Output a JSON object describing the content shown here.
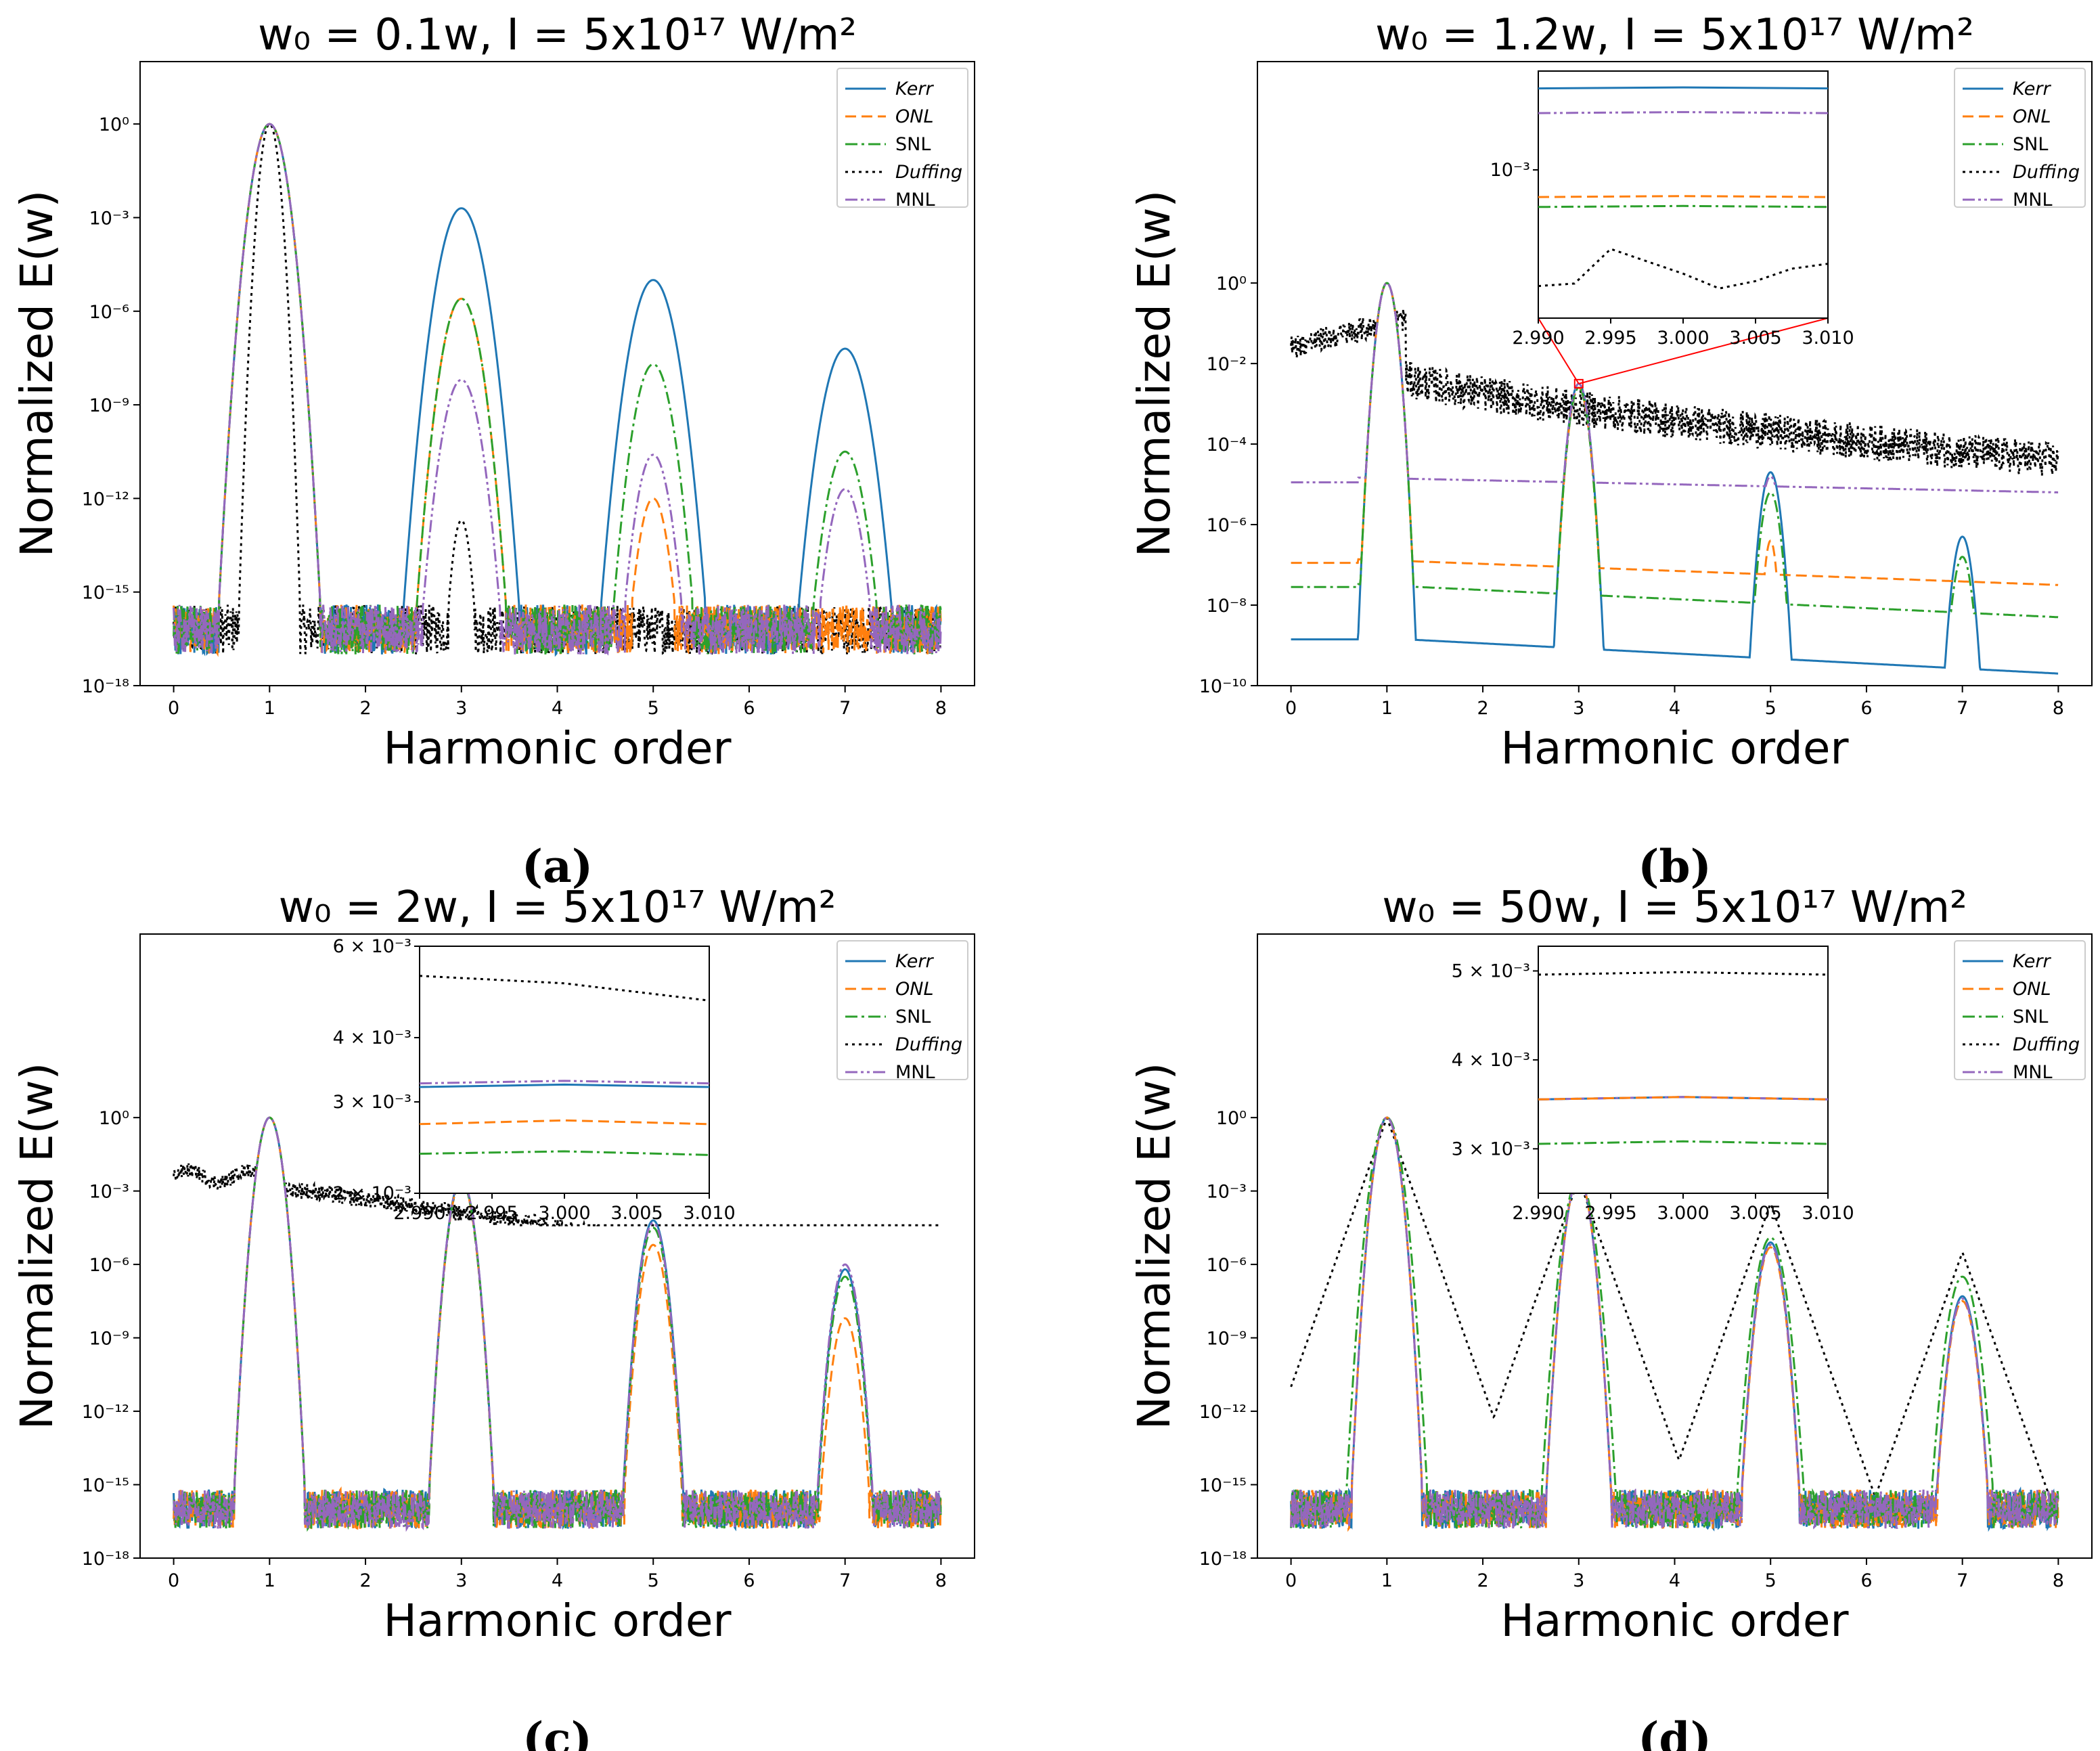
{
  "figure": {
    "xlabel": "Harmonic order",
    "ylabel": "Normalized E(w)",
    "legend": [
      {
        "name": "Kerr",
        "italic": true,
        "color": "#1f77b4",
        "dash": "solid"
      },
      {
        "name": "ONL",
        "italic": true,
        "color": "#ff7f0e",
        "dash": "dashed"
      },
      {
        "name": "SNL",
        "italic": false,
        "color": "#2ca02c",
        "dash": "dashdot"
      },
      {
        "name": "Duffing",
        "italic": true,
        "color": "#000000",
        "dash": "dotted"
      },
      {
        "name": "MNL",
        "italic": false,
        "color": "#9467bd",
        "dash": "dashdotdot"
      }
    ],
    "colors": {
      "inset_connector": "#ff0000",
      "axes": "#000000",
      "background": "#ffffff"
    }
  },
  "chart_data": [
    {
      "panel_label": "(a)",
      "title": "w₀ = 0.1w, I = 5x10¹⁷ W/m²",
      "type": "line",
      "xlabel": "Harmonic order",
      "ylabel": "Normalized E(w)",
      "xscale": "linear",
      "yscale": "log",
      "xlim": [
        -0.35,
        8.35
      ],
      "ylim_exp": [
        -18,
        2
      ],
      "xticks": [
        0,
        1,
        2,
        3,
        4,
        5,
        6,
        7,
        8
      ],
      "yticks": [
        {
          "v": 0,
          "label": "10⁰"
        },
        {
          "v": -3,
          "label": "10⁻³"
        },
        {
          "v": -6,
          "label": "10⁻⁶"
        },
        {
          "v": -9,
          "label": "10⁻⁹"
        },
        {
          "v": -12,
          "label": "10⁻¹²"
        },
        {
          "v": -15,
          "label": "10⁻¹⁵"
        },
        {
          "v": -18,
          "label": "10⁻¹⁸"
        }
      ],
      "legend_position": "top-right",
      "noise_floor_log10": -16.2,
      "series": [
        {
          "name": "Kerr",
          "peaks": [
            {
              "h": 1,
              "log10": 0,
              "w": 0.2
            },
            {
              "h": 3,
              "log10": -2.7,
              "w": 0.25
            },
            {
              "h": 5,
              "log10": -5,
              "w": 0.25
            },
            {
              "h": 7,
              "log10": -7.2,
              "w": 0.25
            }
          ]
        },
        {
          "name": "ONL",
          "peaks": [
            {
              "h": 1,
              "log10": 0,
              "w": 0.2
            },
            {
              "h": 3,
              "log10": -5.6,
              "w": 0.22
            },
            {
              "h": 5,
              "log10": -12,
              "w": 0.18
            }
          ]
        },
        {
          "name": "SNL",
          "peaks": [
            {
              "h": 1,
              "log10": 0,
              "w": 0.2
            },
            {
              "h": 3,
              "log10": -5.6,
              "w": 0.22
            },
            {
              "h": 5,
              "log10": -7.7,
              "w": 0.22
            },
            {
              "h": 7,
              "log10": -10.5,
              "w": 0.22
            }
          ]
        },
        {
          "name": "Duffing",
          "peaks": [
            {
              "h": 1,
              "log10": 0,
              "w": 0.12
            },
            {
              "h": 3,
              "log10": -12.7,
              "w": 0.12
            }
          ]
        },
        {
          "name": "MNL",
          "peaks": [
            {
              "h": 1,
              "log10": 0,
              "w": 0.2
            },
            {
              "h": 3,
              "log10": -8.2,
              "w": 0.22
            },
            {
              "h": 5,
              "log10": -10.6,
              "w": 0.2
            },
            {
              "h": 7,
              "log10": -11.7,
              "w": 0.2
            }
          ]
        }
      ]
    },
    {
      "panel_label": "(b)",
      "title": "w₀ = 1.2w, I = 5x10¹⁷ W/m²",
      "type": "line",
      "xlabel": "Harmonic order",
      "ylabel": "Normalized E(w)",
      "xscale": "linear",
      "yscale": "log",
      "xlim": [
        -0.35,
        8.35
      ],
      "ylim_exp": [
        -10,
        5.5
      ],
      "xticks": [
        0,
        1,
        2,
        3,
        4,
        5,
        6,
        7,
        8
      ],
      "yticks": [
        {
          "v": 0,
          "label": "10⁰"
        },
        {
          "v": -2,
          "label": "10⁻²"
        },
        {
          "v": -4,
          "label": "10⁻⁴"
        },
        {
          "v": -6,
          "label": "10⁻⁶"
        },
        {
          "v": -8,
          "label": "10⁻⁸"
        },
        {
          "v": -10,
          "label": "10⁻¹⁰"
        }
      ],
      "legend_position": "top-right",
      "baselines": {
        "Kerr": [
          -8.7,
          -9.7
        ],
        "ONL": [
          -6.8,
          -7.5
        ],
        "SNL": [
          -7.4,
          -8.3
        ],
        "MNL": [
          -4.8,
          -5.2
        ],
        "Duffing": [
          -1.3,
          -4.4
        ]
      },
      "series": [
        {
          "name": "Kerr",
          "peaks": [
            {
              "h": 1,
              "log10": 0,
              "w": 0.15
            },
            {
              "h": 3,
              "log10": -2.5,
              "w": 0.15
            },
            {
              "h": 5,
              "log10": -4.7,
              "w": 0.15
            },
            {
              "h": 7,
              "log10": -6.3,
              "w": 0.15
            }
          ]
        },
        {
          "name": "ONL",
          "peaks": [
            {
              "h": 1,
              "log10": 0,
              "w": 0.15
            },
            {
              "h": 3,
              "log10": -2.6,
              "w": 0.15
            },
            {
              "h": 5,
              "log10": -6.4,
              "w": 0.1
            }
          ]
        },
        {
          "name": "SNL",
          "peaks": [
            {
              "h": 1,
              "log10": 0,
              "w": 0.15
            },
            {
              "h": 3,
              "log10": -2.6,
              "w": 0.15
            },
            {
              "h": 5,
              "log10": -5.2,
              "w": 0.15
            },
            {
              "h": 7,
              "log10": -6.8,
              "w": 0.15
            }
          ]
        },
        {
          "name": "Duffing",
          "peaks": []
        },
        {
          "name": "MNL",
          "peaks": [
            {
              "h": 1,
              "log10": 0,
              "w": 0.15
            },
            {
              "h": 3,
              "log10": -2.5,
              "w": 0.15
            },
            {
              "h": 5,
              "log10": -4.8,
              "w": 0.15
            },
            {
              "h": 7,
              "log10": -6.2,
              "w": 0.12
            }
          ]
        }
      ],
      "inset": {
        "xlim": [
          2.99,
          3.01
        ],
        "xticks": [
          "2.990",
          "2.995",
          "3.000",
          "3.005",
          "3.010"
        ],
        "ytick_label": "10⁻³",
        "curves": {
          "Kerr": 0.07,
          "MNL": 0.17,
          "ONL": 0.51,
          "SNL": 0.55,
          "Duffing": [
            0.87,
            0.86,
            0.72,
            0.77,
            0.82,
            0.88,
            0.85,
            0.8,
            0.78
          ]
        }
      }
    },
    {
      "panel_label": "(c)",
      "title": "w₀ = 2w, I = 5x10¹⁷ W/m²",
      "type": "line",
      "xlabel": "Harmonic order",
      "ylabel": "Normalized E(w)",
      "xscale": "linear",
      "yscale": "log",
      "xlim": [
        -0.35,
        8.35
      ],
      "ylim_exp": [
        -18,
        7.5
      ],
      "xticks": [
        0,
        1,
        2,
        3,
        4,
        5,
        6,
        7,
        8
      ],
      "yticks": [
        {
          "v": 0,
          "label": "10⁰"
        },
        {
          "v": -3,
          "label": "10⁻³"
        },
        {
          "v": -6,
          "label": "10⁻⁶"
        },
        {
          "v": -9,
          "label": "10⁻⁹"
        },
        {
          "v": -12,
          "label": "10⁻¹²"
        },
        {
          "v": -15,
          "label": "10⁻¹⁵"
        },
        {
          "v": -18,
          "label": "10⁻¹⁸"
        }
      ],
      "legend_position": "top-right",
      "noise_floor_log10": -16.0,
      "series": [
        {
          "name": "Kerr",
          "peaks": [
            {
              "h": 1,
              "log10": 0,
              "w": 0.14
            },
            {
              "h": 3,
              "log10": -2.5,
              "w": 0.14
            },
            {
              "h": 5,
              "log10": -4.2,
              "w": 0.14
            },
            {
              "h": 7,
              "log10": -6.2,
              "w": 0.14
            }
          ]
        },
        {
          "name": "ONL",
          "peaks": [
            {
              "h": 1,
              "log10": 0,
              "w": 0.14
            },
            {
              "h": 3,
              "log10": -2.6,
              "w": 0.14
            },
            {
              "h": 5,
              "log10": -5.2,
              "w": 0.14
            },
            {
              "h": 7,
              "log10": -8.2,
              "w": 0.14
            }
          ]
        },
        {
          "name": "SNL",
          "peaks": [
            {
              "h": 1,
              "log10": 0,
              "w": 0.14
            },
            {
              "h": 3,
              "log10": -2.6,
              "w": 0.14
            },
            {
              "h": 5,
              "log10": -4.5,
              "w": 0.14
            },
            {
              "h": 7,
              "log10": -6.5,
              "w": 0.14
            }
          ]
        },
        {
          "name": "Duffing",
          "peaks": []
        },
        {
          "name": "MNL",
          "peaks": [
            {
              "h": 1,
              "log10": 0,
              "w": 0.14
            },
            {
              "h": 3,
              "log10": -2.5,
              "w": 0.14
            },
            {
              "h": 5,
              "log10": -4.3,
              "w": 0.14
            },
            {
              "h": 7,
              "log10": -6.0,
              "w": 0.14
            }
          ]
        }
      ],
      "inset": {
        "xlim": [
          2.99,
          3.01
        ],
        "xticks": [
          "2.990",
          "2.995",
          "3.000",
          "3.005",
          "3.010"
        ],
        "yticks": [
          {
            "label": "6 × 10⁻³",
            "f": 0.0
          },
          {
            "label": "4 × 10⁻³",
            "f": 0.37
          },
          {
            "label": "3 × 10⁻³",
            "f": 0.63
          },
          {
            "label": "2 × 10⁻³",
            "f": 1.0
          }
        ],
        "curves": {
          "Duffing": [
            0.12,
            0.15,
            0.22
          ],
          "MNL": [
            0.555,
            0.545,
            0.555
          ],
          "Kerr": [
            0.57,
            0.56,
            0.57
          ],
          "ONL": [
            0.72,
            0.705,
            0.72
          ],
          "SNL": [
            0.84,
            0.83,
            0.845
          ]
        }
      }
    },
    {
      "panel_label": "(d)",
      "title": "w₀ = 50w, I = 5x10¹⁷ W/m²",
      "type": "line",
      "xlabel": "Harmonic order",
      "ylabel": "Normalized E(w)",
      "xscale": "linear",
      "yscale": "log",
      "xlim": [
        -0.35,
        8.35
      ],
      "ylim_exp": [
        -18,
        7.5
      ],
      "xticks": [
        0,
        1,
        2,
        3,
        4,
        5,
        6,
        7,
        8
      ],
      "yticks": [
        {
          "v": 0,
          "label": "10⁰"
        },
        {
          "v": -3,
          "label": "10⁻³"
        },
        {
          "v": -6,
          "label": "10⁻⁶"
        },
        {
          "v": -9,
          "label": "10⁻⁹"
        },
        {
          "v": -12,
          "label": "10⁻¹²"
        },
        {
          "v": -15,
          "label": "10⁻¹⁵"
        },
        {
          "v": -18,
          "label": "10⁻¹⁸"
        }
      ],
      "legend_position": "top-right",
      "noise_floor_log10": -16.0,
      "duffing_envelope": {
        "peaks": [
          0,
          -2.5,
          -3.5,
          -5.5
        ],
        "valleys": [
          -13,
          -12.8,
          -12.8
        ],
        "ends": [
          -15.5,
          -12.5
        ]
      },
      "series": [
        {
          "name": "Kerr",
          "peaks": [
            {
              "h": 1,
              "log10": 0,
              "w": 0.14
            },
            {
              "h": 3,
              "log10": -2.5,
              "w": 0.14
            },
            {
              "h": 5,
              "log10": -5.1,
              "w": 0.14
            },
            {
              "h": 7,
              "log10": -7.3,
              "w": 0.14
            }
          ]
        },
        {
          "name": "ONL",
          "peaks": [
            {
              "h": 1,
              "log10": 0,
              "w": 0.14
            },
            {
              "h": 3,
              "log10": -2.5,
              "w": 0.14
            },
            {
              "h": 5,
              "log10": -5.3,
              "w": 0.14
            },
            {
              "h": 7,
              "log10": -7.5,
              "w": 0.14
            }
          ]
        },
        {
          "name": "SNL",
          "peaks": [
            {
              "h": 1,
              "log10": 0,
              "w": 0.16
            },
            {
              "h": 3,
              "log10": -2.5,
              "w": 0.16
            },
            {
              "h": 5,
              "log10": -4.9,
              "w": 0.16
            },
            {
              "h": 7,
              "log10": -6.5,
              "w": 0.16
            }
          ]
        },
        {
          "name": "Duffing",
          "peaks": []
        },
        {
          "name": "MNL",
          "peaks": [
            {
              "h": 1,
              "log10": 0,
              "w": 0.14
            },
            {
              "h": 3,
              "log10": -2.5,
              "w": 0.14
            },
            {
              "h": 5,
              "log10": -5.2,
              "w": 0.14
            },
            {
              "h": 7,
              "log10": -7.4,
              "w": 0.14
            }
          ]
        }
      ],
      "inset": {
        "xlim": [
          2.99,
          3.01
        ],
        "xticks": [
          "2.990",
          "2.995",
          "3.000",
          "3.005",
          "3.010"
        ],
        "yticks": [
          {
            "label": "5 × 10⁻³",
            "f": 0.1
          },
          {
            "label": "4 × 10⁻³",
            "f": 0.46
          },
          {
            "label": "3 × 10⁻³",
            "f": 0.82
          }
        ],
        "curves": {
          "Duffing": [
            0.115,
            0.105,
            0.115
          ],
          "Kerr": [
            0.62,
            0.61,
            0.62
          ],
          "MNL": [
            0.62,
            0.61,
            0.62
          ],
          "ONL": [
            0.62,
            0.61,
            0.62
          ],
          "SNL": [
            0.8,
            0.79,
            0.8
          ]
        }
      }
    }
  ]
}
